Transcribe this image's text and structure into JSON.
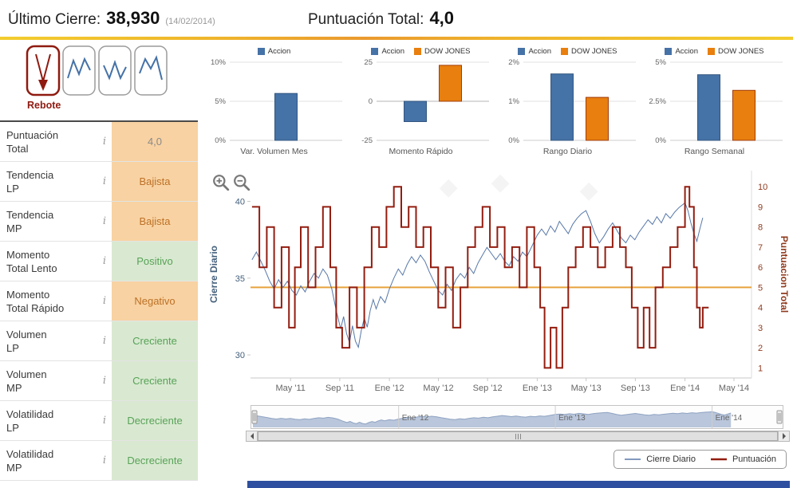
{
  "header": {
    "last_close_label": "Último Cierre:",
    "last_close_value": "38,930",
    "last_close_date": "(14/02/2014)",
    "total_score_label": "Puntuación Total:",
    "total_score_value": "4,0"
  },
  "pattern": {
    "label": "Rebote"
  },
  "icons": {
    "info_glyph": "i"
  },
  "indicators": [
    {
      "label": "Puntuación",
      "label2": "Total",
      "value": "4,0",
      "tone": "orange",
      "muted": true
    },
    {
      "label": "Tendencia",
      "label2": "LP",
      "value": "Bajista",
      "tone": "orange"
    },
    {
      "label": "Tendencia",
      "label2": "MP",
      "value": "Bajista",
      "tone": "orange"
    },
    {
      "label": "Momento",
      "label2": "Total Lento",
      "value": "Positivo",
      "tone": "green"
    },
    {
      "label": "Momento",
      "label2": "Total Rápido",
      "value": "Negativo",
      "tone": "orange"
    },
    {
      "label": "Volumen",
      "label2": "LP",
      "value": "Creciente",
      "tone": "green"
    },
    {
      "label": "Volumen",
      "label2": "MP",
      "value": "Creciente",
      "tone": "green"
    },
    {
      "label": "Volatilidad",
      "label2": "LP",
      "value": "Decreciente",
      "tone": "green"
    },
    {
      "label": "Volatilidad",
      "label2": "MP",
      "value": "Decreciente",
      "tone": "green"
    }
  ],
  "colors": {
    "accion": "#4572a7",
    "accion_border": "#33567f",
    "dowjones": "#e87f0e",
    "dowjones_border": "#a03c0c",
    "price_line": "#5878a8",
    "score_line": "#931d10",
    "threshold_line": "#e8a33c",
    "price_axis": "#44607c",
    "score_axis": "#8f3b1f",
    "navigator_fill": "#b9c6db",
    "navigator_line": "#8fa3c2",
    "footer_strip": "#2e4f9f"
  },
  "chart_data": [
    {
      "type": "bar",
      "xlabel": "Var. Volumen Mes",
      "legend": [
        "Accion"
      ],
      "yticks": [
        "0%",
        "5%",
        "10%"
      ],
      "ytick_values": [
        0,
        5,
        10
      ],
      "ymin": 0,
      "ymax": 10,
      "series": [
        {
          "name": "Accion",
          "value": 6
        }
      ]
    },
    {
      "type": "bar",
      "xlabel": "Momento Rápido",
      "legend": [
        "Accion",
        "DOW JONES"
      ],
      "yticks": [
        "-25",
        "0",
        "25"
      ],
      "ytick_values": [
        -25,
        0,
        25
      ],
      "ymin": -25,
      "ymax": 25,
      "series": [
        {
          "name": "Accion",
          "value": -13
        },
        {
          "name": "DOW JONES",
          "value": 23
        }
      ]
    },
    {
      "type": "bar",
      "xlabel": "Rango Diario",
      "legend": [
        "Accion",
        "DOW JONES"
      ],
      "yticks": [
        "0%",
        "1%",
        "2%"
      ],
      "ytick_values": [
        0,
        1,
        2
      ],
      "ymin": 0,
      "ymax": 2,
      "series": [
        {
          "name": "Accion",
          "value": 1.7
        },
        {
          "name": "DOW JONES",
          "value": 1.1
        }
      ]
    },
    {
      "type": "bar",
      "xlabel": "Rango Semanal",
      "legend": [
        "Accion",
        "DOW JONES"
      ],
      "yticks": [
        "0%",
        "2.5%",
        "5%"
      ],
      "ytick_values": [
        0,
        2.5,
        5
      ],
      "ymin": 0,
      "ymax": 5,
      "series": [
        {
          "name": "Accion",
          "value": 4.2
        },
        {
          "name": "DOW JONES",
          "value": 3.2
        }
      ]
    },
    {
      "type": "line",
      "ylabel_left": "Cierre Diario",
      "ylabel_right": "Puntuacion Total",
      "yticks_left": [
        30,
        35,
        40
      ],
      "yticks_right": [
        1,
        2,
        3,
        4,
        5,
        6,
        7,
        8,
        9,
        10
      ],
      "xticks": [
        "May '11",
        "Sep '11",
        "Ene '12",
        "May '12",
        "Sep '12",
        "Ene '13",
        "May '13",
        "Sep '13",
        "Ene '14",
        "May '14"
      ],
      "xticks_t": [
        2011.331,
        2011.664,
        2012.0,
        2012.331,
        2012.664,
        2013.0,
        2013.331,
        2013.664,
        2014.0,
        2014.331
      ],
      "x_range": [
        2011.06,
        2014.45
      ],
      "y_left_range": [
        28.5,
        42
      ],
      "y_right_range": [
        0.5,
        10.8
      ],
      "threshold": 5,
      "series": [
        {
          "name": "Cierre Diario",
          "axis": "left",
          "points": [
            [
              2011.07,
              36.2
            ],
            [
              2011.1,
              36.7
            ],
            [
              2011.13,
              36.1
            ],
            [
              2011.16,
              35.5
            ],
            [
              2011.19,
              34.8
            ],
            [
              2011.22,
              34.3
            ],
            [
              2011.25,
              34.9
            ],
            [
              2011.28,
              34.4
            ],
            [
              2011.31,
              34.8
            ],
            [
              2011.34,
              34.2
            ],
            [
              2011.37,
              33.9
            ],
            [
              2011.4,
              34.5
            ],
            [
              2011.43,
              34.1
            ],
            [
              2011.46,
              34.8
            ],
            [
              2011.49,
              35.3
            ],
            [
              2011.52,
              35.0
            ],
            [
              2011.55,
              35.6
            ],
            [
              2011.58,
              35.2
            ],
            [
              2011.61,
              34.3
            ],
            [
              2011.64,
              32.9
            ],
            [
              2011.67,
              31.7
            ],
            [
              2011.69,
              32.5
            ],
            [
              2011.71,
              31.4
            ],
            [
              2011.73,
              30.8
            ],
            [
              2011.75,
              31.9
            ],
            [
              2011.77,
              30.9
            ],
            [
              2011.79,
              30.5
            ],
            [
              2011.81,
              31.6
            ],
            [
              2011.83,
              32.4
            ],
            [
              2011.85,
              31.8
            ],
            [
              2011.87,
              32.9
            ],
            [
              2011.89,
              33.6
            ],
            [
              2011.91,
              33.0
            ],
            [
              2011.94,
              33.8
            ],
            [
              2011.97,
              33.4
            ],
            [
              2012.0,
              34.3
            ],
            [
              2012.03,
              35.0
            ],
            [
              2012.06,
              35.6
            ],
            [
              2012.09,
              35.2
            ],
            [
              2012.12,
              35.9
            ],
            [
              2012.15,
              36.4
            ],
            [
              2012.18,
              36.0
            ],
            [
              2012.21,
              36.5
            ],
            [
              2012.24,
              36.1
            ],
            [
              2012.27,
              35.4
            ],
            [
              2012.3,
              34.8
            ],
            [
              2012.33,
              34.2
            ],
            [
              2012.36,
              33.9
            ],
            [
              2012.39,
              34.6
            ],
            [
              2012.42,
              34.2
            ],
            [
              2012.45,
              34.9
            ],
            [
              2012.48,
              35.3
            ],
            [
              2012.51,
              35.0
            ],
            [
              2012.54,
              35.7
            ],
            [
              2012.57,
              35.3
            ],
            [
              2012.6,
              36.0
            ],
            [
              2012.63,
              36.5
            ],
            [
              2012.66,
              37.0
            ],
            [
              2012.69,
              36.6
            ],
            [
              2012.72,
              36.2
            ],
            [
              2012.75,
              36.6
            ],
            [
              2012.78,
              36.1
            ],
            [
              2012.81,
              35.8
            ],
            [
              2012.84,
              36.4
            ],
            [
              2012.87,
              36.1
            ],
            [
              2012.9,
              36.7
            ],
            [
              2012.93,
              36.4
            ],
            [
              2012.96,
              37.0
            ],
            [
              2013.0,
              37.8
            ],
            [
              2013.03,
              38.2
            ],
            [
              2013.06,
              37.8
            ],
            [
              2013.09,
              38.4
            ],
            [
              2013.12,
              38.0
            ],
            [
              2013.15,
              38.7
            ],
            [
              2013.18,
              38.3
            ],
            [
              2013.21,
              37.9
            ],
            [
              2013.24,
              38.5
            ],
            [
              2013.27,
              38.9
            ],
            [
              2013.3,
              39.2
            ],
            [
              2013.33,
              39.4
            ],
            [
              2013.36,
              38.7
            ],
            [
              2013.39,
              37.9
            ],
            [
              2013.42,
              37.3
            ],
            [
              2013.45,
              37.7
            ],
            [
              2013.48,
              38.2
            ],
            [
              2013.51,
              38.6
            ],
            [
              2013.54,
              38.1
            ],
            [
              2013.57,
              37.6
            ],
            [
              2013.6,
              37.3
            ],
            [
              2013.63,
              37.8
            ],
            [
              2013.66,
              37.5
            ],
            [
              2013.69,
              38.0
            ],
            [
              2013.72,
              38.4
            ],
            [
              2013.75,
              38.8
            ],
            [
              2013.78,
              38.5
            ],
            [
              2013.81,
              39.0
            ],
            [
              2013.84,
              38.6
            ],
            [
              2013.87,
              39.2
            ],
            [
              2013.9,
              38.9
            ],
            [
              2013.93,
              39.3
            ],
            [
              2013.96,
              39.6
            ],
            [
              2014.0,
              39.9
            ],
            [
              2014.02,
              39.4
            ],
            [
              2014.04,
              38.6
            ],
            [
              2014.06,
              37.9
            ],
            [
              2014.08,
              37.4
            ],
            [
              2014.1,
              38.2
            ],
            [
              2014.12,
              38.93
            ]
          ]
        },
        {
          "name": "Puntuación",
          "axis": "right",
          "step": true,
          "points": [
            [
              2011.07,
              9
            ],
            [
              2011.12,
              6
            ],
            [
              2011.17,
              8
            ],
            [
              2011.22,
              4
            ],
            [
              2011.27,
              7
            ],
            [
              2011.32,
              3
            ],
            [
              2011.36,
              6
            ],
            [
              2011.4,
              8
            ],
            [
              2011.45,
              5
            ],
            [
              2011.5,
              7
            ],
            [
              2011.55,
              9
            ],
            [
              2011.6,
              6
            ],
            [
              2011.64,
              3
            ],
            [
              2011.68,
              2
            ],
            [
              2011.73,
              5
            ],
            [
              2011.78,
              3
            ],
            [
              2011.83,
              6
            ],
            [
              2011.88,
              8
            ],
            [
              2011.93,
              7
            ],
            [
              2011.98,
              9
            ],
            [
              2012.03,
              10
            ],
            [
              2012.08,
              8
            ],
            [
              2012.13,
              9
            ],
            [
              2012.18,
              7
            ],
            [
              2012.23,
              8
            ],
            [
              2012.28,
              6
            ],
            [
              2012.33,
              4
            ],
            [
              2012.38,
              6
            ],
            [
              2012.43,
              3
            ],
            [
              2012.48,
              5
            ],
            [
              2012.53,
              7
            ],
            [
              2012.58,
              8
            ],
            [
              2012.63,
              9
            ],
            [
              2012.68,
              7
            ],
            [
              2012.73,
              8
            ],
            [
              2012.78,
              6
            ],
            [
              2012.83,
              7
            ],
            [
              2012.88,
              5
            ],
            [
              2012.93,
              8
            ],
            [
              2012.98,
              6
            ],
            [
              2013.02,
              4
            ],
            [
              2013.05,
              1
            ],
            [
              2013.09,
              3
            ],
            [
              2013.13,
              1
            ],
            [
              2013.17,
              4
            ],
            [
              2013.21,
              6
            ],
            [
              2013.26,
              7
            ],
            [
              2013.31,
              8
            ],
            [
              2013.36,
              7
            ],
            [
              2013.41,
              6
            ],
            [
              2013.46,
              7
            ],
            [
              2013.51,
              8
            ],
            [
              2013.56,
              7
            ],
            [
              2013.6,
              6
            ],
            [
              2013.64,
              4
            ],
            [
              2013.68,
              2
            ],
            [
              2013.72,
              4
            ],
            [
              2013.76,
              2
            ],
            [
              2013.8,
              5
            ],
            [
              2013.85,
              6
            ],
            [
              2013.9,
              7
            ],
            [
              2013.95,
              8
            ],
            [
              2014.0,
              10
            ],
            [
              2014.03,
              9
            ],
            [
              2014.06,
              6
            ],
            [
              2014.08,
              4
            ],
            [
              2014.1,
              3
            ],
            [
              2014.12,
              4
            ]
          ]
        }
      ]
    }
  ],
  "navigator": {
    "labels": [
      "Ene '12",
      "Ene '13",
      "Ene '14"
    ],
    "ticks_t": [
      2012.0,
      2013.0,
      2014.0
    ]
  },
  "legend": {
    "items": [
      "Cierre Diario",
      "Puntuación"
    ]
  }
}
